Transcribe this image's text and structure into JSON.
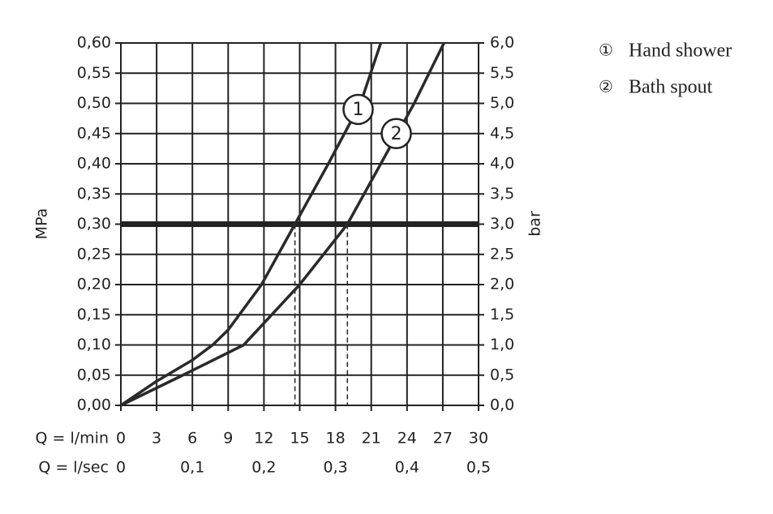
{
  "chart_data": {
    "type": "line",
    "x_label": "Q = l/min",
    "x2_label": "Q = l/sec",
    "y_label": "MPa",
    "y2_label": "bar",
    "xlim": [
      0,
      30
    ],
    "xticks": [
      0,
      3,
      6,
      9,
      12,
      15,
      18,
      21,
      24,
      27,
      30
    ],
    "x2lim": [
      0,
      0.5
    ],
    "x2ticks": [
      0,
      {
        "value": 0.1,
        "label": "0,1"
      },
      {
        "value": 0.2,
        "label": "0,2"
      },
      {
        "value": 0.3,
        "label": "0,3"
      },
      {
        "value": 0.4,
        "label": "0,4"
      },
      {
        "value": 0.5,
        "label": "0,5"
      }
    ],
    "ylim": [
      0,
      0.6
    ],
    "yticks": [
      {
        "value": 0,
        "label": "0,00"
      },
      {
        "value": 0.05,
        "label": "0,05"
      },
      {
        "value": 0.1,
        "label": "0,10"
      },
      {
        "value": 0.15,
        "label": "0,15"
      },
      {
        "value": 0.2,
        "label": "0,20"
      },
      {
        "value": 0.25,
        "label": "0,25"
      },
      {
        "value": 0.3,
        "label": "0,30"
      },
      {
        "value": 0.35,
        "label": "0,35"
      },
      {
        "value": 0.4,
        "label": "0,40"
      },
      {
        "value": 0.45,
        "label": "0,45"
      },
      {
        "value": 0.5,
        "label": "0,50"
      },
      {
        "value": 0.55,
        "label": "0,55"
      },
      {
        "value": 0.6,
        "label": "0,60"
      }
    ],
    "y2lim": [
      0,
      6
    ],
    "y2ticks": [
      {
        "value": 0,
        "label": "0,0"
      },
      {
        "value": 0.5,
        "label": "0,5"
      },
      {
        "value": 1,
        "label": "1,0"
      },
      {
        "value": 1.5,
        "label": "1,5"
      },
      {
        "value": 2,
        "label": "2,0"
      },
      {
        "value": 2.5,
        "label": "2,5"
      },
      {
        "value": 3,
        "label": "3,0"
      },
      {
        "value": 3.5,
        "label": "3,5"
      },
      {
        "value": 4,
        "label": "4,0"
      },
      {
        "value": 4.5,
        "label": "4,5"
      },
      {
        "value": 5,
        "label": "5,0"
      },
      {
        "value": 5.5,
        "label": "5,5"
      },
      {
        "value": 6,
        "label": "6,0"
      }
    ],
    "grid": true,
    "reference_y": 0.3,
    "reference_x": [
      14.6,
      19.0
    ],
    "series": [
      {
        "name": "Hand shower",
        "marker": "①",
        "label": "1",
        "label_at": [
          19.9,
          0.49
        ],
        "color": "#2a2a2a",
        "x": [
          0,
          3,
          6,
          7.7,
          9,
          11.8,
          14.6,
          17.4,
          20.1,
          21.8
        ],
        "values": [
          0,
          0.04,
          0.075,
          0.1,
          0.125,
          0.2,
          0.3,
          0.4,
          0.5,
          0.6
        ]
      },
      {
        "name": "Bath spout",
        "marker": "②",
        "label": "2",
        "label_at": [
          23.1,
          0.45
        ],
        "color": "#2a2a2a",
        "x": [
          0,
          5.2,
          10.3,
          15,
          19,
          21.8,
          24.6,
          27.1
        ],
        "values": [
          0,
          0.05,
          0.1,
          0.2,
          0.3,
          0.4,
          0.5,
          0.6
        ]
      }
    ]
  }
}
